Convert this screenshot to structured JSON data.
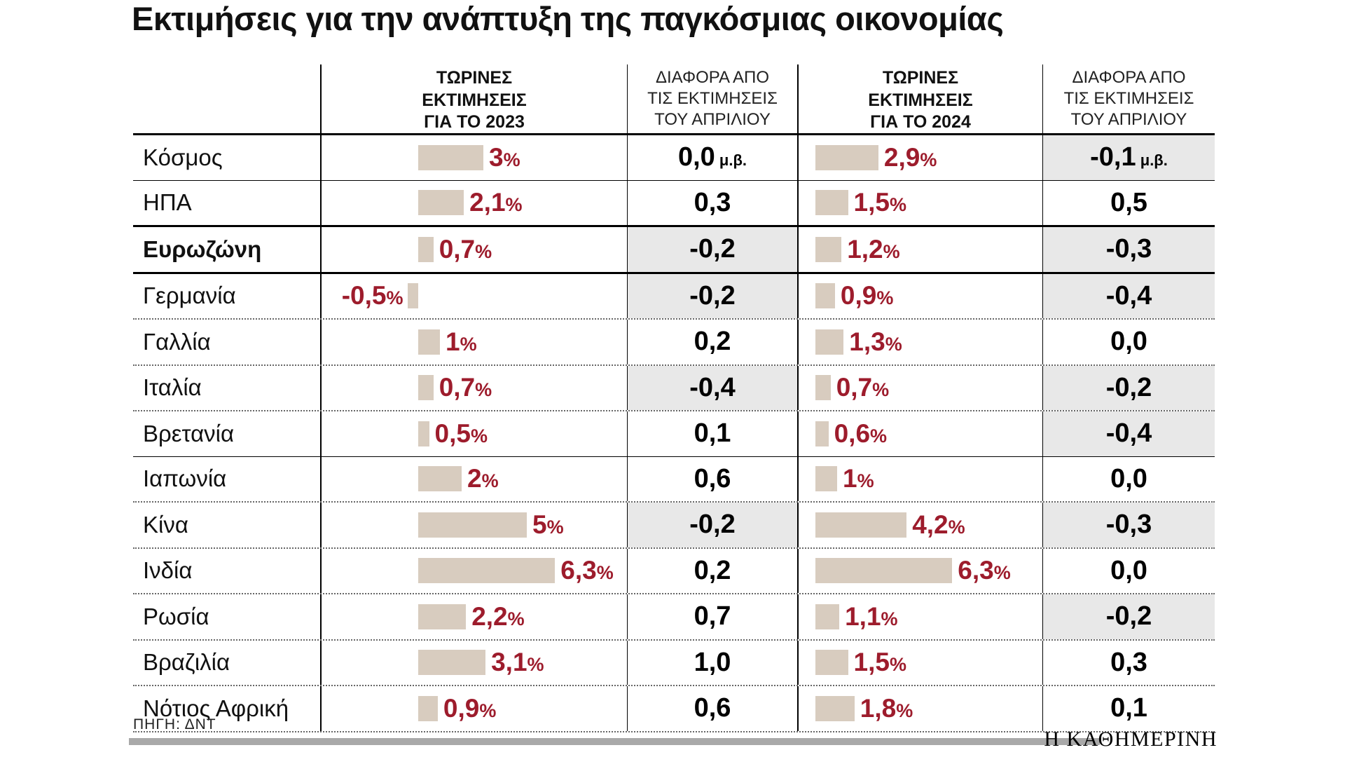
{
  "title": "Εκτιμήσεις για την ανάπτυξη της παγκόσμιας οικονομίας",
  "colors": {
    "accent": "#9d1c2c",
    "bar": "#d8ccbf",
    "shade": "#e8e8e8"
  },
  "header": {
    "col_est2023": [
      "ΤΩΡΙΝΕΣ",
      "ΕΚΤΙΜΗΣΕΙΣ",
      "ΓΙΑ ΤΟ 2023"
    ],
    "col_diff2023": [
      "ΔΙΑΦΟΡΑ ΑΠΟ",
      "ΤΙΣ ΕΚΤΙΜΗΣΕΙΣ",
      "ΤΟΥ ΑΠΡΙΛΙΟΥ"
    ],
    "col_est2024": [
      "ΤΩΡΙΝΕΣ",
      "ΕΚΤΙΜΗΣΕΙΣ",
      "ΓΙΑ ΤΟ 2024"
    ],
    "col_diff2024": [
      "ΔΙΑΦΟΡΑ ΑΠΟ",
      "ΤΙΣ ΕΚΤΙΜΗΣΕΙΣ",
      "ΤΟΥ ΑΠΡΙΛΙΟΥ"
    ]
  },
  "rows": [
    {
      "label": "Κόσμος",
      "bold": false,
      "sep": "solid",
      "est2023": {
        "value": 3,
        "display": "3"
      },
      "diff2023": {
        "display": "0,0",
        "unit": " μ.β.",
        "negative": false
      },
      "est2024": {
        "value": 2.9,
        "display": "2,9"
      },
      "diff2024": {
        "display": "-0,1",
        "unit": " μ.β.",
        "negative": true
      }
    },
    {
      "label": "ΗΠΑ",
      "bold": false,
      "sep": "thick",
      "est2023": {
        "value": 2.1,
        "display": "2,1"
      },
      "diff2023": {
        "display": "0,3",
        "unit": "",
        "negative": false
      },
      "est2024": {
        "value": 1.5,
        "display": "1,5"
      },
      "diff2024": {
        "display": "0,5",
        "unit": "",
        "negative": false
      }
    },
    {
      "label": "Ευρωζώνη",
      "bold": true,
      "sep": "thick",
      "est2023": {
        "value": 0.7,
        "display": "0,7"
      },
      "diff2023": {
        "display": "-0,2",
        "unit": "",
        "negative": true
      },
      "est2024": {
        "value": 1.2,
        "display": "1,2"
      },
      "diff2024": {
        "display": "-0,3",
        "unit": "",
        "negative": true
      }
    },
    {
      "label": "Γερμανία",
      "bold": false,
      "sep": "dotted",
      "est2023": {
        "value": -0.5,
        "display": "-0,5"
      },
      "diff2023": {
        "display": "-0,2",
        "unit": "",
        "negative": true
      },
      "est2024": {
        "value": 0.9,
        "display": "0,9"
      },
      "diff2024": {
        "display": "-0,4",
        "unit": "",
        "negative": true
      }
    },
    {
      "label": "Γαλλία",
      "bold": false,
      "sep": "dotted",
      "est2023": {
        "value": 1,
        "display": "1"
      },
      "diff2023": {
        "display": "0,2",
        "unit": "",
        "negative": false
      },
      "est2024": {
        "value": 1.3,
        "display": "1,3"
      },
      "diff2024": {
        "display": "0,0",
        "unit": "",
        "negative": false
      }
    },
    {
      "label": "Ιταλία",
      "bold": false,
      "sep": "dotted",
      "est2023": {
        "value": 0.7,
        "display": "0,7"
      },
      "diff2023": {
        "display": "-0,4",
        "unit": "",
        "negative": true
      },
      "est2024": {
        "value": 0.7,
        "display": "0,7"
      },
      "diff2024": {
        "display": "-0,2",
        "unit": "",
        "negative": true
      }
    },
    {
      "label": "Βρετανία",
      "bold": false,
      "sep": "solid",
      "est2023": {
        "value": 0.5,
        "display": "0,5"
      },
      "diff2023": {
        "display": "0,1",
        "unit": "",
        "negative": false
      },
      "est2024": {
        "value": 0.6,
        "display": "0,6"
      },
      "diff2024": {
        "display": "-0,4",
        "unit": "",
        "negative": true
      }
    },
    {
      "label": "Ιαπωνία",
      "bold": false,
      "sep": "dotted",
      "est2023": {
        "value": 2,
        "display": "2"
      },
      "diff2023": {
        "display": "0,6",
        "unit": "",
        "negative": false
      },
      "est2024": {
        "value": 1,
        "display": "1"
      },
      "diff2024": {
        "display": "0,0",
        "unit": "",
        "negative": false
      }
    },
    {
      "label": "Κίνα",
      "bold": false,
      "sep": "dotted",
      "est2023": {
        "value": 5,
        "display": "5"
      },
      "diff2023": {
        "display": "-0,2",
        "unit": "",
        "negative": true
      },
      "est2024": {
        "value": 4.2,
        "display": "4,2"
      },
      "diff2024": {
        "display": "-0,3",
        "unit": "",
        "negative": true
      }
    },
    {
      "label": "Ινδία",
      "bold": false,
      "sep": "dotted",
      "est2023": {
        "value": 6.3,
        "display": "6,3"
      },
      "diff2023": {
        "display": "0,2",
        "unit": "",
        "negative": false
      },
      "est2024": {
        "value": 6.3,
        "display": "6,3"
      },
      "diff2024": {
        "display": "0,0",
        "unit": "",
        "negative": false
      }
    },
    {
      "label": "Ρωσία",
      "bold": false,
      "sep": "dotted",
      "est2023": {
        "value": 2.2,
        "display": "2,2"
      },
      "diff2023": {
        "display": "0,7",
        "unit": "",
        "negative": false
      },
      "est2024": {
        "value": 1.1,
        "display": "1,1"
      },
      "diff2024": {
        "display": "-0,2",
        "unit": "",
        "negative": true
      }
    },
    {
      "label": "Βραζιλία",
      "bold": false,
      "sep": "dotted",
      "est2023": {
        "value": 3.1,
        "display": "3,1"
      },
      "diff2023": {
        "display": "1,0",
        "unit": "",
        "negative": false
      },
      "est2024": {
        "value": 1.5,
        "display": "1,5"
      },
      "diff2024": {
        "display": "0,3",
        "unit": "",
        "negative": false
      }
    },
    {
      "label": "Νότιος Αφρική",
      "bold": false,
      "sep": "dotted",
      "est2023": {
        "value": 0.9,
        "display": "0,9"
      },
      "diff2023": {
        "display": "0,6",
        "unit": "",
        "negative": false
      },
      "est2024": {
        "value": 1.8,
        "display": "1,8"
      },
      "diff2024": {
        "display": "0,1",
        "unit": "",
        "negative": false
      }
    }
  ],
  "footer": {
    "source": "ΠΗΓΗ: ΔΝΤ",
    "brand": "Η ΚΑΘΗΜΕΡΙΝΗ"
  },
  "chart_data": {
    "type": "bar",
    "title": "Εκτιμήσεις για την ανάπτυξη της παγκόσμιας οικονομίας",
    "categories": [
      "Κόσμος",
      "ΗΠΑ",
      "Ευρωζώνη",
      "Γερμανία",
      "Γαλλία",
      "Ιταλία",
      "Βρετανία",
      "Ιαπωνία",
      "Κίνα",
      "Ινδία",
      "Ρωσία",
      "Βραζιλία",
      "Νότιος Αφρική"
    ],
    "series": [
      {
        "name": "ΤΩΡΙΝΕΣ ΕΚΤΙΜΗΣΕΙΣ ΓΙΑ ΤΟ 2023 (%)",
        "values": [
          3,
          2.1,
          0.7,
          -0.5,
          1,
          0.7,
          0.5,
          2,
          5,
          6.3,
          2.2,
          3.1,
          0.9
        ]
      },
      {
        "name": "ΔΙΑΦΟΡΑ ΑΠΟ ΤΙΣ ΕΚΤΙΜΗΣΕΙΣ ΤΟΥ ΑΠΡΙΛΙΟΥ (2023, μ.β.)",
        "values": [
          0.0,
          0.3,
          -0.2,
          -0.2,
          0.2,
          -0.4,
          0.1,
          0.6,
          -0.2,
          0.2,
          0.7,
          1.0,
          0.6
        ]
      },
      {
        "name": "ΤΩΡΙΝΕΣ ΕΚΤΙΜΗΣΕΙΣ ΓΙΑ ΤΟ 2024 (%)",
        "values": [
          2.9,
          1.5,
          1.2,
          0.9,
          1.3,
          0.7,
          0.6,
          1,
          4.2,
          6.3,
          1.1,
          1.5,
          1.8
        ]
      },
      {
        "name": "ΔΙΑΦΟΡΑ ΑΠΟ ΤΙΣ ΕΚΤΙΜΗΣΕΙΣ ΤΟΥ ΑΠΡΙΛΙΟΥ (2024, μ.β.)",
        "values": [
          -0.1,
          0.5,
          -0.3,
          -0.4,
          0.0,
          -0.2,
          -0.4,
          0.0,
          -0.3,
          0.0,
          -0.2,
          0.3,
          0.1
        ]
      }
    ],
    "xlabel": "",
    "ylabel": "%",
    "xlim": [
      -1,
      7
    ],
    "grid": false,
    "legend_position": "none",
    "source": "ΠΗΓΗ: ΔΝΤ"
  }
}
